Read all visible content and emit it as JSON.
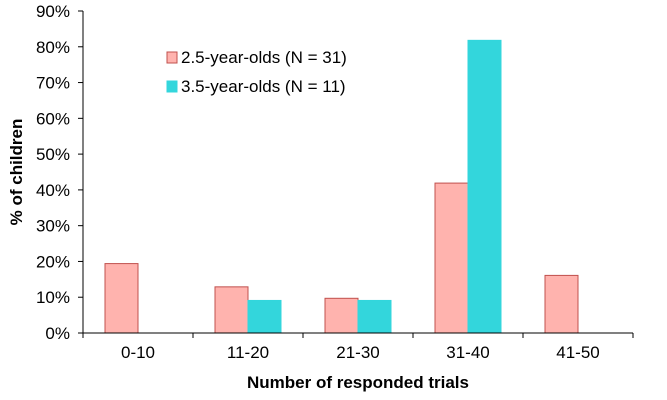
{
  "chart_data": {
    "type": "bar",
    "categories": [
      "0-10",
      "11-20",
      "21-30",
      "31-40",
      "41-50"
    ],
    "series": [
      {
        "name": "2.5-year-olds (N = 31)",
        "values": [
          19.4,
          12.9,
          9.7,
          41.9,
          16.1
        ],
        "color": "#FFB3AE",
        "stroke": "#C0504D"
      },
      {
        "name": "3.5-year-olds (N = 11)",
        "values": [
          null,
          9.1,
          9.1,
          81.8,
          null
        ],
        "color": "#33D6DC",
        "stroke": "#33D6DC"
      }
    ],
    "xlabel": "Number of responded trials",
    "ylabel": "% of children",
    "ylim": [
      0,
      90
    ],
    "yticks": [
      "0%",
      "10%",
      "20%",
      "30%",
      "40%",
      "50%",
      "60%",
      "70%",
      "80%",
      "90%"
    ],
    "grid": false,
    "legend_position": "top-left"
  }
}
